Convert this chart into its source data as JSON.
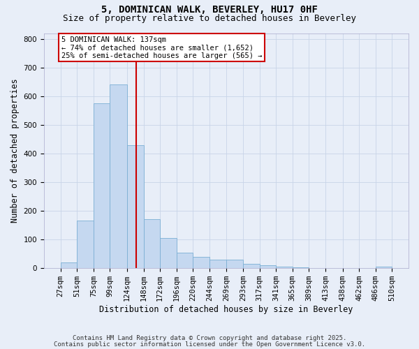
{
  "title1": "5, DOMINICAN WALK, BEVERLEY, HU17 0HF",
  "title2": "Size of property relative to detached houses in Beverley",
  "xlabel": "Distribution of detached houses by size in Beverley",
  "ylabel": "Number of detached properties",
  "bin_labels": [
    "27sqm",
    "51sqm",
    "75sqm",
    "99sqm",
    "124sqm",
    "148sqm",
    "172sqm",
    "196sqm",
    "220sqm",
    "244sqm",
    "269sqm",
    "293sqm",
    "317sqm",
    "341sqm",
    "365sqm",
    "389sqm",
    "413sqm",
    "438sqm",
    "462sqm",
    "486sqm",
    "510sqm"
  ],
  "bin_edges": [
    27,
    51,
    75,
    99,
    124,
    148,
    172,
    196,
    220,
    244,
    269,
    293,
    317,
    341,
    365,
    389,
    413,
    438,
    462,
    486,
    510
  ],
  "bar_heights": [
    20,
    165,
    575,
    640,
    430,
    170,
    105,
    55,
    40,
    30,
    30,
    15,
    10,
    5,
    2,
    1,
    1,
    0,
    0,
    5
  ],
  "bar_color": "#C5D8F0",
  "bar_edge_color": "#7BAFD4",
  "vline_x": 137,
  "vline_color": "#CC0000",
  "ylim": [
    0,
    820
  ],
  "yticks": [
    0,
    100,
    200,
    300,
    400,
    500,
    600,
    700,
    800
  ],
  "annotation_title": "5 DOMINICAN WALK: 137sqm",
  "annotation_line1": "← 74% of detached houses are smaller (1,652)",
  "annotation_line2": "25% of semi-detached houses are larger (565) →",
  "annotation_box_color": "#ffffff",
  "annotation_box_edge_color": "#CC0000",
  "grid_color": "#C8D4E8",
  "bg_color": "#E8EEF8",
  "footer1": "Contains HM Land Registry data © Crown copyright and database right 2025.",
  "footer2": "Contains public sector information licensed under the Open Government Licence v3.0.",
  "title_fontsize": 10,
  "subtitle_fontsize": 9,
  "annotation_fontsize": 7.5,
  "tick_fontsize": 7.5,
  "axis_label_fontsize": 8.5,
  "footer_fontsize": 6.5
}
